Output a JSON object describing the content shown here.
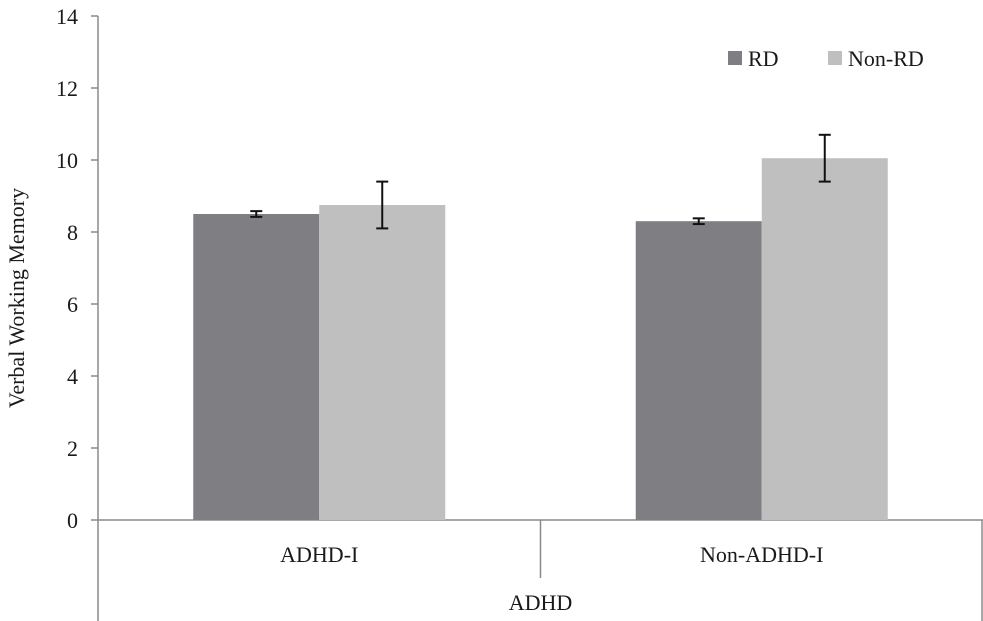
{
  "chart_data": {
    "type": "bar",
    "title": "",
    "xlabel": "ADHD",
    "ylabel": "Verbal Working Memory",
    "categories": [
      "ADHD-I",
      "Non-ADHD-I"
    ],
    "series": [
      {
        "name": "RD",
        "color": "#7f7f83",
        "values": [
          8.5,
          8.3
        ],
        "error": [
          0.08,
          0.08
        ]
      },
      {
        "name": "Non-RD",
        "color": "#bfbfc0",
        "values": [
          8.75,
          10.05
        ],
        "error": [
          0.65,
          0.65
        ]
      }
    ],
    "ylim": [
      0,
      14
    ],
    "yticks": [
      0,
      2,
      4,
      6,
      8,
      10,
      12,
      14
    ],
    "grid": false,
    "legend_position": "top-right"
  }
}
